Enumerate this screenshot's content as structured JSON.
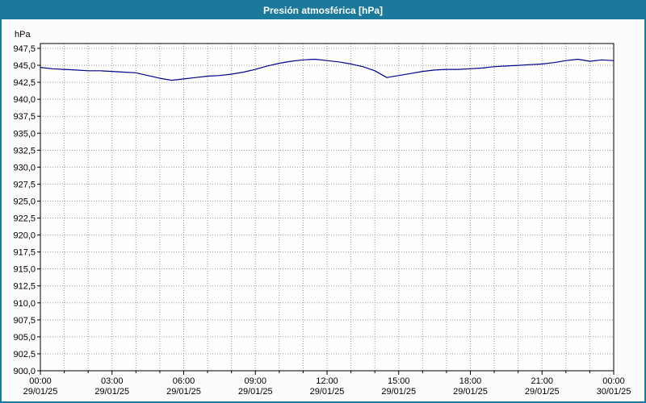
{
  "window": {
    "title": "Presión atmosférica [hPa]"
  },
  "theme": {
    "titlebar_bg": "#1b7a9b",
    "border_color": "#1b7a9b",
    "line_color": "#00008c",
    "grid_color": "#9a9a9a",
    "axis_color": "#000000",
    "plot_bg": "#fefefe",
    "outer_bg": "#fcfcfc"
  },
  "chart_data": {
    "type": "line",
    "title": "Presión atmosférica [hPa]",
    "ylabel": "hPa",
    "xlabel": "",
    "ylim": [
      900.0,
      947.5
    ],
    "y_tick_step": 2.5,
    "grid": "dotted",
    "legend": "none",
    "y_ticks": [
      "947,5",
      "945,0",
      "942,5",
      "940,0",
      "937,5",
      "935,0",
      "932,5",
      "930,0",
      "927,5",
      "925,0",
      "922,5",
      "920,0",
      "917,5",
      "915,0",
      "912,5",
      "910,0",
      "907,5",
      "905,0",
      "902,5",
      "900,0"
    ],
    "x_ticks": [
      {
        "hour": 0,
        "time": "00:00",
        "date": "29/01/25"
      },
      {
        "hour": 3,
        "time": "03:00",
        "date": "29/01/25"
      },
      {
        "hour": 6,
        "time": "06:00",
        "date": "29/01/25"
      },
      {
        "hour": 9,
        "time": "09:00",
        "date": "29/01/25"
      },
      {
        "hour": 12,
        "time": "12:00",
        "date": "29/01/25"
      },
      {
        "hour": 15,
        "time": "15:00",
        "date": "29/01/25"
      },
      {
        "hour": 18,
        "time": "18:00",
        "date": "29/01/25"
      },
      {
        "hour": 21,
        "time": "21:00",
        "date": "29/01/25"
      },
      {
        "hour": 24,
        "time": "00:00",
        "date": "30/01/25"
      }
    ],
    "x_minor_tick_hours": 1,
    "series": [
      {
        "name": "Presión atmosférica",
        "x_hours": [
          0,
          0.5,
          1,
          1.5,
          2,
          2.5,
          3,
          3.5,
          4,
          4.5,
          5,
          5.5,
          6,
          6.5,
          7,
          7.5,
          8,
          8.5,
          9,
          9.5,
          10,
          10.5,
          11,
          11.5,
          12,
          12.5,
          13,
          13.5,
          14,
          14.5,
          15,
          15.5,
          16,
          16.5,
          17,
          17.5,
          18,
          18.5,
          19,
          19.5,
          20,
          20.5,
          21,
          21.5,
          22,
          22.5,
          23,
          23.5,
          24
        ],
        "values": [
          944.7,
          944.5,
          944.4,
          944.3,
          944.2,
          944.2,
          944.1,
          944.0,
          943.9,
          943.5,
          943.1,
          942.8,
          943.0,
          943.2,
          943.4,
          943.5,
          943.7,
          944.0,
          944.4,
          944.9,
          945.3,
          945.6,
          945.8,
          945.9,
          945.7,
          945.5,
          945.2,
          944.8,
          944.2,
          943.2,
          943.5,
          943.8,
          944.1,
          944.3,
          944.4,
          944.4,
          944.5,
          944.6,
          944.8,
          944.9,
          945.0,
          945.1,
          945.2,
          945.4,
          945.7,
          945.9,
          945.6,
          945.8,
          945.7
        ]
      }
    ]
  }
}
